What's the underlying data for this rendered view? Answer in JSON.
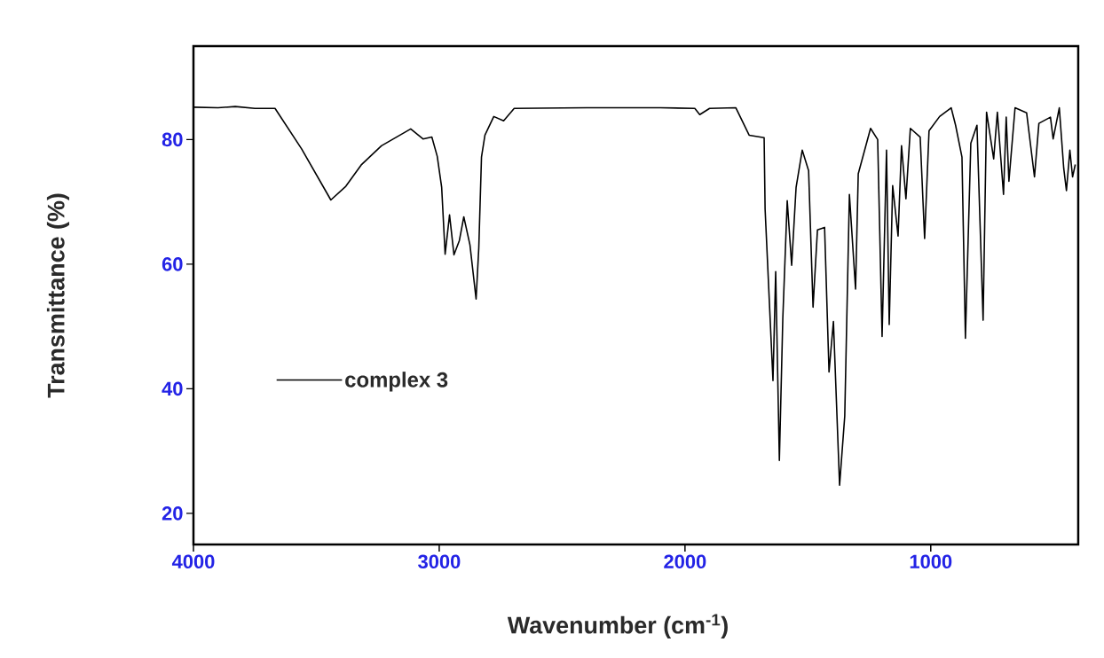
{
  "chart_data": {
    "type": "line",
    "xlabel": "Wavenumber (cm$^{-1}$)",
    "ylabel": "Transmittance (%)",
    "xlim": [
      4000,
      400
    ],
    "ylim": [
      15,
      95
    ],
    "xticks": [
      4000,
      3000,
      2000,
      1000
    ],
    "yticks": [
      20,
      40,
      60,
      80
    ],
    "grid": false,
    "legend": "left",
    "marker": "none",
    "line_style": "solid",
    "series": [
      {
        "name": "complex 3",
        "color": "#000000",
        "x": [
          4000,
          3900,
          3830,
          3750,
          3668,
          3560,
          3441,
          3380,
          3318,
          3235,
          3116,
          3066,
          3030,
          3008,
          2990,
          2976,
          2958,
          2940,
          2918,
          2900,
          2875,
          2850,
          2839,
          2828,
          2814,
          2778,
          2738,
          2695,
          2400,
          2100,
          1960,
          1940,
          1900,
          1793,
          1739,
          1678,
          1674,
          1642,
          1631,
          1616,
          1602,
          1584,
          1566,
          1548,
          1523,
          1497,
          1479,
          1461,
          1432,
          1414,
          1396,
          1371,
          1350,
          1331,
          1306,
          1295,
          1245,
          1216,
          1198,
          1180,
          1169,
          1155,
          1133,
          1119,
          1101,
          1083,
          1043,
          1025,
          1007,
          964,
          917,
          899,
          873,
          859,
          837,
          812,
          787,
          773,
          744,
          729,
          704,
          693,
          682,
          657,
          610,
          578,
          560,
          513,
          502,
          477,
          459,
          448,
          434,
          423,
          412
        ],
        "values": [
          85.2,
          85.1,
          85.3,
          85.0,
          85.0,
          78.5,
          70.3,
          72.5,
          75.9,
          79.0,
          81.7,
          80.1,
          80.4,
          77.3,
          72.3,
          61.6,
          67.9,
          61.5,
          63.8,
          67.6,
          63.1,
          54.4,
          62.6,
          77.2,
          80.7,
          83.7,
          83.0,
          85.0,
          85.1,
          85.1,
          85.0,
          84.0,
          85.0,
          85.1,
          80.7,
          80.3,
          68.8,
          41.3,
          58.8,
          28.5,
          51.3,
          70.2,
          59.8,
          72.3,
          78.3,
          75.0,
          53.1,
          65.5,
          65.9,
          42.7,
          50.8,
          24.5,
          35.6,
          71.2,
          56.0,
          74.5,
          81.8,
          80.0,
          48.4,
          78.3,
          50.3,
          72.6,
          64.5,
          79.0,
          70.5,
          81.8,
          80.4,
          64.1,
          81.4,
          83.7,
          85.1,
          82.3,
          77.2,
          48.1,
          79.4,
          82.3,
          51.0,
          84.4,
          76.9,
          84.4,
          71.2,
          83.6,
          73.3,
          85.1,
          84.3,
          74.0,
          82.6,
          83.6,
          80.1,
          85.1,
          75.4,
          71.8,
          78.3,
          74.0,
          76.0
        ]
      }
    ]
  }
}
